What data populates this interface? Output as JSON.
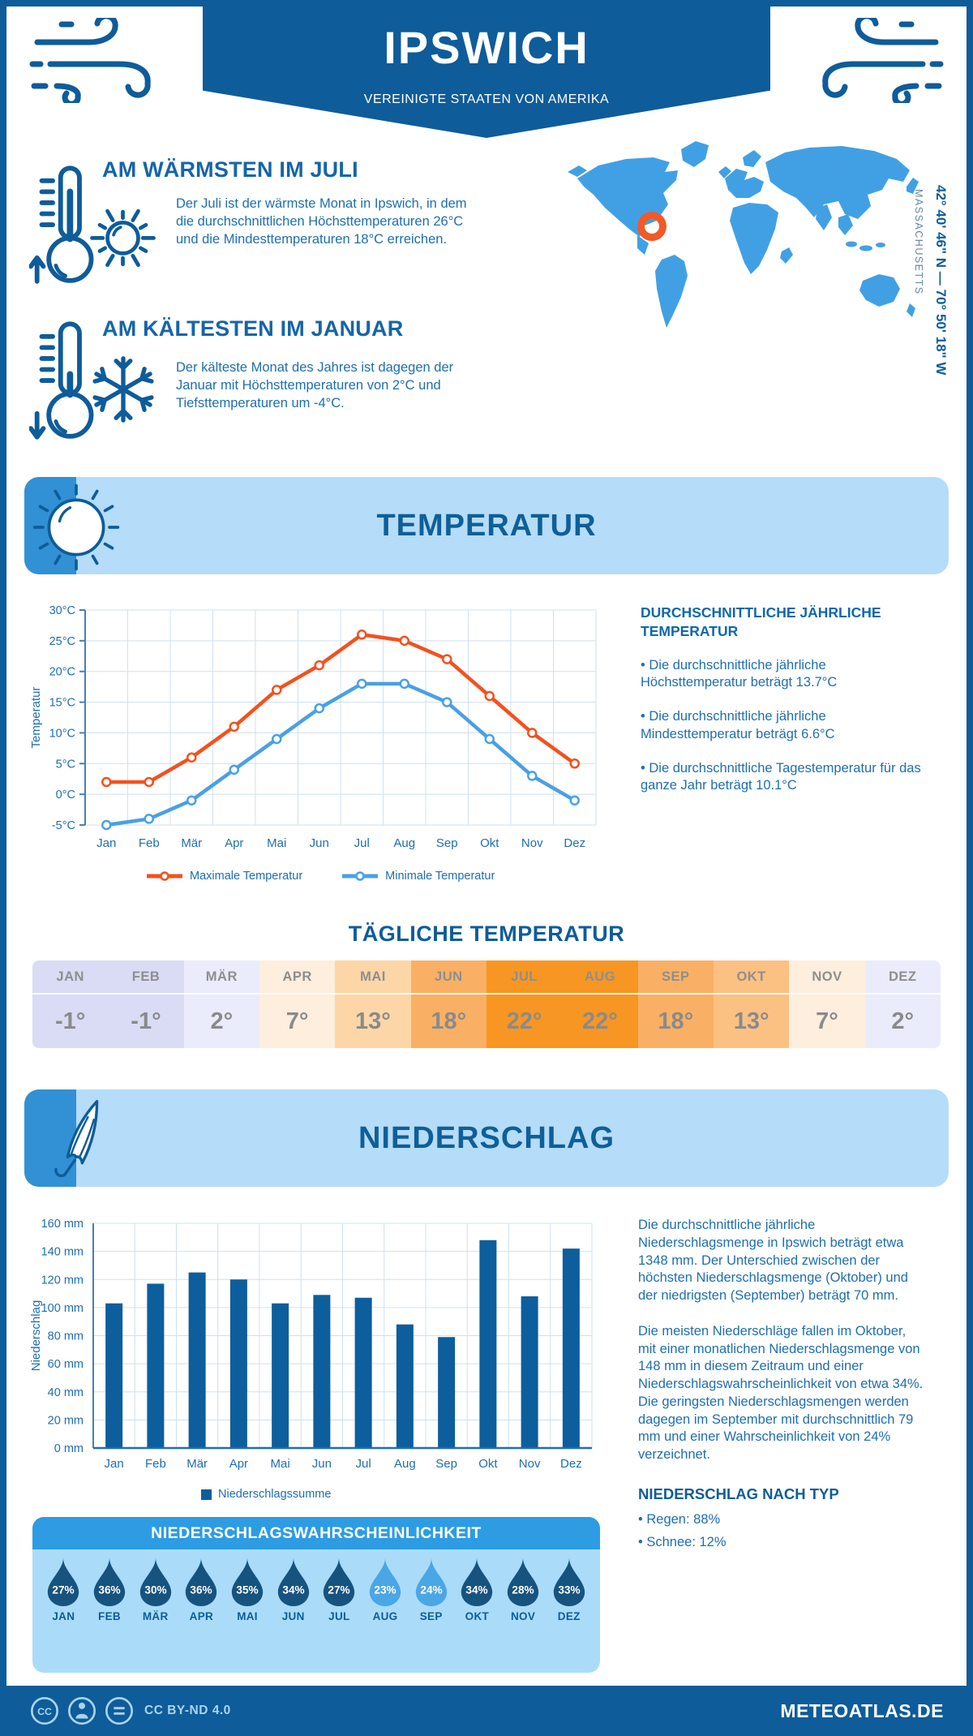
{
  "header": {
    "title": "IPSWICH",
    "subtitle": "VEREINIGTE STAATEN VON AMERIKA"
  },
  "highlights": {
    "warm": {
      "title": "AM WÄRMSTEN IM JULI",
      "text": "Der Juli ist der wärmste Monat in Ipswich, in dem die durchschnittlichen Höchsttemperaturen 26°C und die Mindesttemperaturen 18°C erreichen."
    },
    "cold": {
      "title": "AM KÄLTESTEN IM JANUAR",
      "text": "Der kälteste Monat des Jahres ist dagegen der Januar mit Höchsttemperaturen von 2°C und Tiefsttemperaturen um -4°C."
    }
  },
  "map": {
    "coordinates": "42° 40' 46\" N — 70° 50' 18\" W",
    "region": "MASSACHUSETTS",
    "marker_color": "#f05a28",
    "land_color": "#41a0e4"
  },
  "temperature": {
    "title": "TEMPERATUR",
    "summary_title": "DURCHSCHNITTLICHE JÄHRLICHE TEMPERATUR",
    "bullets": [
      "• Die durchschnittliche jährliche Höchsttemperatur beträgt 13.7°C",
      "• Die durchschnittliche jährliche Mindesttemperatur beträgt 6.6°C",
      "• Die durchschnittliche Tagestemperatur für das ganze Jahr beträgt 10.1°C"
    ],
    "daily_title": "TÄGLICHE TEMPERATUR"
  },
  "daily": {
    "months": [
      "JAN",
      "FEB",
      "MÄR",
      "APR",
      "MAI",
      "JUN",
      "JUL",
      "AUG",
      "SEP",
      "OKT",
      "NOV",
      "DEZ"
    ],
    "values": [
      "-1°",
      "-1°",
      "2°",
      "7°",
      "13°",
      "18°",
      "22°",
      "22°",
      "18°",
      "13°",
      "7°",
      "2°"
    ],
    "colors": [
      "#d9dcf4",
      "#d9dcf4",
      "#eaecfb",
      "#fdeedd",
      "#fcd6a6",
      "#fab064",
      "#f89623",
      "#f89623",
      "#fab064",
      "#fbc183",
      "#fdeedd",
      "#eaecfb"
    ]
  },
  "chart_data": [
    {
      "type": "line",
      "title": "Temperatur",
      "x": [
        "Jan",
        "Feb",
        "Mär",
        "Apr",
        "Mai",
        "Jun",
        "Jul",
        "Aug",
        "Sep",
        "Okt",
        "Nov",
        "Dez"
      ],
      "series": [
        {
          "name": "Maximale Temperatur",
          "color": "#f4511e",
          "values": [
            2,
            2,
            6,
            11,
            17,
            21,
            26,
            25,
            22,
            16,
            10,
            5
          ]
        },
        {
          "name": "Minimale Temperatur",
          "color": "#49a0e4",
          "values": [
            -5,
            -4,
            -1,
            4,
            9,
            14,
            18,
            18,
            15,
            9,
            3,
            -1
          ]
        }
      ],
      "ylabel": "Temperatur",
      "ylim": [
        -5,
        30
      ],
      "ystep": 5,
      "yticks": [
        "30°C",
        "25°C",
        "20°C",
        "15°C",
        "10°C",
        "5°C",
        "0°C",
        "-5°C"
      ],
      "grid": true,
      "legend_position": "bottom"
    },
    {
      "type": "bar",
      "title": "Niederschlag",
      "categories": [
        "Jan",
        "Feb",
        "Mär",
        "Apr",
        "Mai",
        "Jun",
        "Jul",
        "Aug",
        "Sep",
        "Okt",
        "Nov",
        "Dez"
      ],
      "values": [
        103,
        117,
        125,
        120,
        103,
        109,
        107,
        88,
        79,
        148,
        108,
        142
      ],
      "bar_color": "#0d5e9c",
      "ylabel": "Niederschlag",
      "ylim": [
        0,
        160
      ],
      "ystep": 20,
      "yticks": [
        "160 mm",
        "140 mm",
        "120 mm",
        "100 mm",
        "80 mm",
        "60 mm",
        "40 mm",
        "20 mm",
        "0 mm"
      ],
      "legend": "Niederschlagssumme",
      "grid": true
    }
  ],
  "precipitation": {
    "title": "NIEDERSCHLAG",
    "paragraph1": "Die durchschnittliche jährliche Niederschlagsmenge in Ipswich beträgt etwa 1348 mm. Der Unterschied zwischen der höchsten Niederschlagsmenge (Oktober) und der niedrigsten (September) beträgt 70 mm.",
    "paragraph2": "Die meisten Niederschläge fallen im Oktober, mit einer monatlichen Niederschlagsmenge von 148 mm in diesem Zeitraum und einer Niederschlagswahrscheinlichkeit von etwa 34%. Die geringsten Niederschlagsmengen werden dagegen im September mit durchschnittlich 79 mm und einer Wahrscheinlichkeit von 24% verzeichnet.",
    "type_title": "NIEDERSCHLAG NACH TYP",
    "types": [
      "• Regen: 88%",
      "• Schnee: 12%"
    ]
  },
  "probability": {
    "title": "NIEDERSCHLAGSWAHRSCHEINLICHKEIT",
    "months": [
      "JAN",
      "FEB",
      "MÄR",
      "APR",
      "MAI",
      "JUN",
      "JUL",
      "AUG",
      "SEP",
      "OKT",
      "NOV",
      "DEZ"
    ],
    "values": [
      "27%",
      "36%",
      "30%",
      "36%",
      "35%",
      "34%",
      "27%",
      "23%",
      "24%",
      "34%",
      "28%",
      "33%"
    ],
    "colors": [
      "#17537f",
      "#17537f",
      "#17537f",
      "#17537f",
      "#17537f",
      "#17537f",
      "#17537f",
      "#4ba6e6",
      "#4ba6e6",
      "#17537f",
      "#17537f",
      "#17537f"
    ]
  },
  "footer": {
    "license": "CC BY-ND 4.0",
    "site": "METEOATLAS.DE"
  },
  "palette": {
    "dark_blue": "#0e5c9a",
    "body_blue": "#1e6eb2",
    "band_bg": "#b5dcf8",
    "panel_bg": "#aadcfa",
    "panel_head": "#2d9ce3",
    "grid": "#cfe0ef"
  }
}
